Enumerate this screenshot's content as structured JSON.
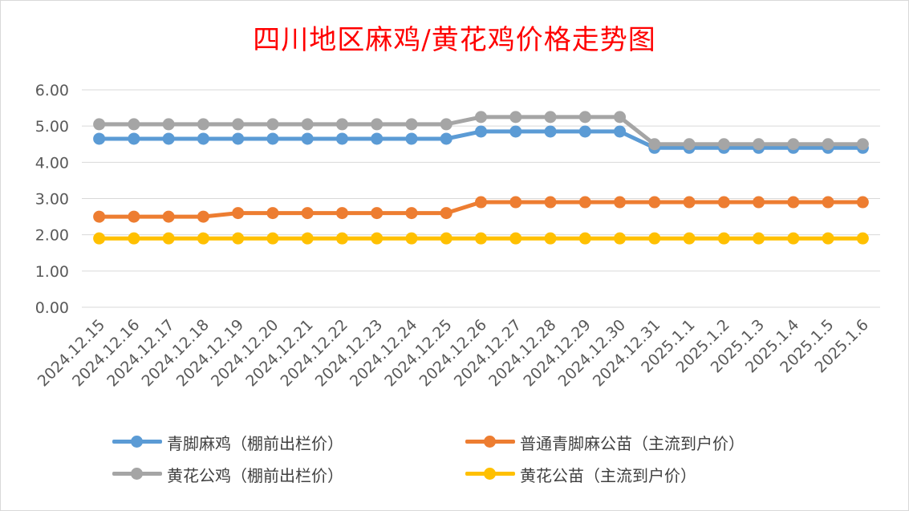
{
  "chart_data": {
    "type": "line",
    "title": "四川地区麻鸡/黄花鸡价格走势图",
    "categories": [
      "2024.12.15",
      "2024.12.16",
      "2024.12.17",
      "2024.12.18",
      "2024.12.19",
      "2024.12.20",
      "2024.12.21",
      "2024.12.22",
      "2024.12.23",
      "2024.12.24",
      "2024.12.25",
      "2024.12.26",
      "2024.12.27",
      "2024.12.28",
      "2024.12.29",
      "2024.12.30",
      "2024.12.31",
      "2025.1.1",
      "2025.1.2",
      "2025.1.3",
      "2025.1.4",
      "2025.1.5",
      "2025.1.6"
    ],
    "y_ticks": [
      "0.00",
      "1.00",
      "2.00",
      "3.00",
      "4.00",
      "5.00",
      "6.00"
    ],
    "ylim": [
      0,
      6
    ],
    "grid": true,
    "legend_position": "bottom",
    "series": [
      {
        "name": "青脚麻鸡（棚前出栏价）",
        "color": "#5b9bd5",
        "values": [
          4.65,
          4.65,
          4.65,
          4.65,
          4.65,
          4.65,
          4.65,
          4.65,
          4.65,
          4.65,
          4.65,
          4.85,
          4.85,
          4.85,
          4.85,
          4.85,
          4.4,
          4.4,
          4.4,
          4.4,
          4.4,
          4.4,
          4.4
        ]
      },
      {
        "name": "普通青脚麻公苗（主流到户价）",
        "color": "#ed7d31",
        "values": [
          2.5,
          2.5,
          2.5,
          2.5,
          2.6,
          2.6,
          2.6,
          2.6,
          2.6,
          2.6,
          2.6,
          2.9,
          2.9,
          2.9,
          2.9,
          2.9,
          2.9,
          2.9,
          2.9,
          2.9,
          2.9,
          2.9,
          2.9
        ]
      },
      {
        "name": "黄花公鸡（棚前出栏价）",
        "color": "#a5a5a5",
        "values": [
          5.05,
          5.05,
          5.05,
          5.05,
          5.05,
          5.05,
          5.05,
          5.05,
          5.05,
          5.05,
          5.05,
          5.25,
          5.25,
          5.25,
          5.25,
          5.25,
          4.5,
          4.5,
          4.5,
          4.5,
          4.5,
          4.5,
          4.5
        ]
      },
      {
        "name": "黄花公苗（主流到户价）",
        "color": "#ffc000",
        "values": [
          1.9,
          1.9,
          1.9,
          1.9,
          1.9,
          1.9,
          1.9,
          1.9,
          1.9,
          1.9,
          1.9,
          1.9,
          1.9,
          1.9,
          1.9,
          1.9,
          1.9,
          1.9,
          1.9,
          1.9,
          1.9,
          1.9,
          1.9
        ]
      }
    ]
  }
}
